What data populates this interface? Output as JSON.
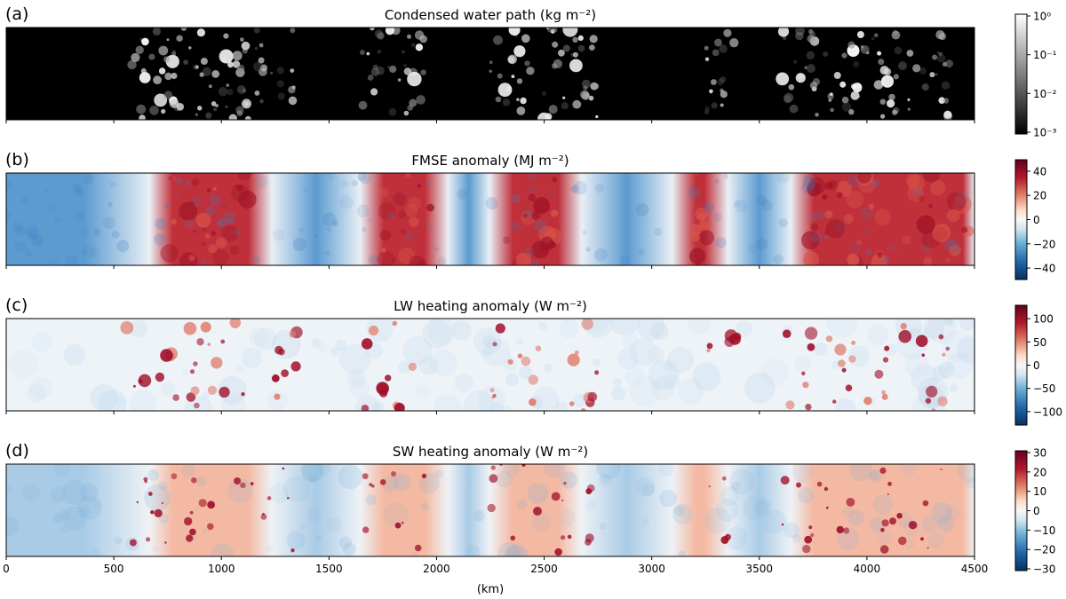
{
  "chart_data": [
    {
      "type": "heatmap",
      "panel_label": "(a)",
      "title": "Condensed water path (kg m⁻²)",
      "scale": "log",
      "colormap": "grayscale",
      "vmin": 0.001,
      "vmax": 1,
      "colorbar_ticks": [
        0.001,
        0.01,
        0.1,
        1
      ],
      "colorbar_tick_labels": [
        "10⁻³",
        "10⁻²",
        "10⁻¹",
        "10⁰"
      ],
      "xlim": [
        0,
        4500
      ],
      "active_regions_km": [
        [
          550,
          1350
        ],
        [
          1650,
          1950
        ],
        [
          2250,
          2750
        ],
        [
          3250,
          3400
        ],
        [
          3600,
          4400
        ]
      ]
    },
    {
      "type": "heatmap",
      "panel_label": "(b)",
      "title": "FMSE anomaly (MJ m⁻²)",
      "colormap": "diverging-blue-red",
      "vmin": -48,
      "vmax": 48,
      "colorbar_ticks": [
        -40,
        -20,
        0,
        20,
        40
      ],
      "colorbar_tick_labels": [
        "−40",
        "−20",
        "0",
        "20",
        "40"
      ],
      "xlim": [
        0,
        4500
      ],
      "positive_regions_km": [
        [
          720,
          1180
        ],
        [
          1700,
          2000
        ],
        [
          2300,
          2620
        ],
        [
          3150,
          3300
        ],
        [
          3700,
          4500
        ]
      ]
    },
    {
      "type": "heatmap",
      "panel_label": "(c)",
      "title": "LW heating anomaly (W m⁻²)",
      "colormap": "diverging-blue-red",
      "vmin": -125,
      "vmax": 125,
      "colorbar_ticks": [
        -100,
        -50,
        0,
        50,
        100
      ],
      "colorbar_tick_labels": [
        "−100",
        "−50",
        "0",
        "50",
        "100"
      ],
      "xlim": [
        0,
        4500
      ]
    },
    {
      "type": "heatmap",
      "panel_label": "(d)",
      "title": "SW heating anomaly (W m⁻²)",
      "colormap": "diverging-blue-red",
      "vmin": -30,
      "vmax": 30,
      "colorbar_ticks": [
        -30,
        -20,
        -10,
        0,
        10,
        20,
        30
      ],
      "colorbar_tick_labels": [
        "−30",
        "−20",
        "−10",
        "0",
        "10",
        "20",
        "30"
      ],
      "xlim": [
        0,
        4500
      ],
      "xticks": [
        0,
        500,
        1000,
        1500,
        2000,
        2500,
        3000,
        3500,
        4000,
        4500
      ],
      "xlabel": "(km)"
    }
  ],
  "colors": {
    "background": "#ffffff",
    "axis": "#000000",
    "red_strong": "#8a0a1e",
    "red_mid": "#d6604d",
    "blue_strong": "#1d4e89",
    "blue_mid": "#6aaed6",
    "neutral": "#f7f7f7"
  }
}
